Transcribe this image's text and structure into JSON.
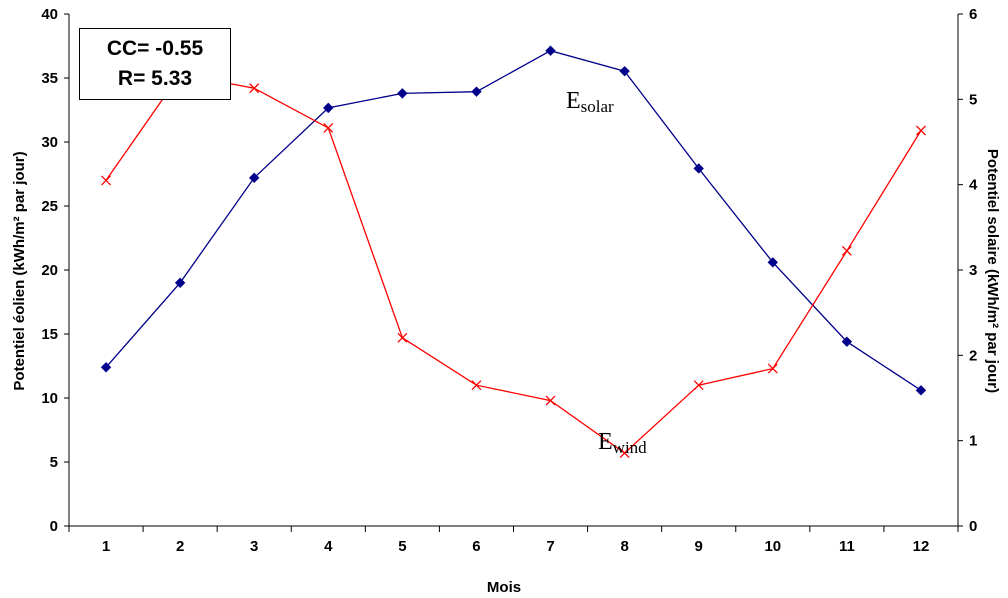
{
  "chart_data": {
    "type": "line",
    "xlabel": "Mois",
    "ylabel_left": "Potentiel éolien (kWh/m² par jour)",
    "ylabel_right": "Potentiel solaire (kWh/m² par jour)",
    "categories": [
      "1",
      "2",
      "3",
      "4",
      "5",
      "6",
      "7",
      "8",
      "9",
      "10",
      "11",
      "12"
    ],
    "ylim_left": [
      0,
      40
    ],
    "ylim_right": [
      0,
      6
    ],
    "yticks_left": [
      "0",
      "5",
      "10",
      "15",
      "20",
      "25",
      "30",
      "35",
      "40"
    ],
    "yticks_right": [
      "0",
      "1",
      "2",
      "3",
      "4",
      "5",
      "6"
    ],
    "grid": false,
    "series": [
      {
        "name": "Esolar",
        "label_main": "E",
        "label_sub": "solar",
        "axis": "right",
        "color": "#00008B",
        "marker": "diamond",
        "values": [
          1.86,
          2.85,
          4.08,
          4.9,
          5.07,
          5.09,
          5.57,
          5.33,
          4.19,
          3.09,
          2.16,
          1.59
        ]
      },
      {
        "name": "Ewind",
        "label_main": "E",
        "label_sub": "wind",
        "axis": "left",
        "color": "#FF0000",
        "marker": "x",
        "values": [
          27.0,
          35.3,
          34.2,
          31.1,
          14.7,
          11.0,
          9.8,
          5.7,
          11.0,
          12.3,
          21.5,
          30.9
        ]
      }
    ],
    "annotation": {
      "line1": "CC= -0.55",
      "line2": "R= 5.33"
    }
  }
}
